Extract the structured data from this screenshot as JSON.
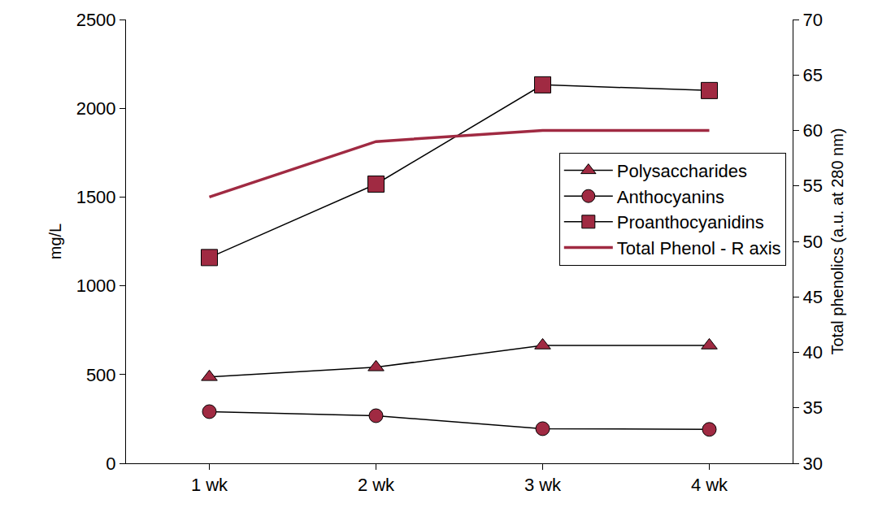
{
  "chart_data": {
    "type": "line",
    "categories": [
      "1 wk",
      "2 wk",
      "3 wk",
      "4 wk"
    ],
    "y_label": "mg/L",
    "y2_label": "Total phenolics (a.u. at 280 nm)",
    "ylim": [
      0,
      2500
    ],
    "yticks": [
      0,
      500,
      1000,
      1500,
      2000,
      2500
    ],
    "y2lim": [
      30,
      70
    ],
    "y2ticks": [
      30,
      35,
      40,
      45,
      50,
      55,
      60,
      65,
      70
    ],
    "grid": false,
    "legend": "right",
    "series": [
      {
        "name": "Polysaccharides",
        "color": "#a02a42",
        "marker": "triangle-up",
        "line_style": "solid",
        "values": [
          486,
          541,
          664,
          664
        ]
      },
      {
        "name": "Anthocyanins",
        "color": "#a02a42",
        "marker": "circle",
        "line_style": "solid",
        "values": [
          291,
          268,
          195,
          191
        ]
      },
      {
        "name": "Proanthocyanidins",
        "color": "#a02a42",
        "marker": "square",
        "line_style": "solid",
        "values": [
          1159,
          1573,
          2132,
          2100
        ]
      },
      {
        "name": "Total Phenol - R axis",
        "color": "#a02a42",
        "line_style": "solid",
        "axis": "y2",
        "values": [
          54,
          59,
          60,
          60
        ]
      }
    ]
  }
}
